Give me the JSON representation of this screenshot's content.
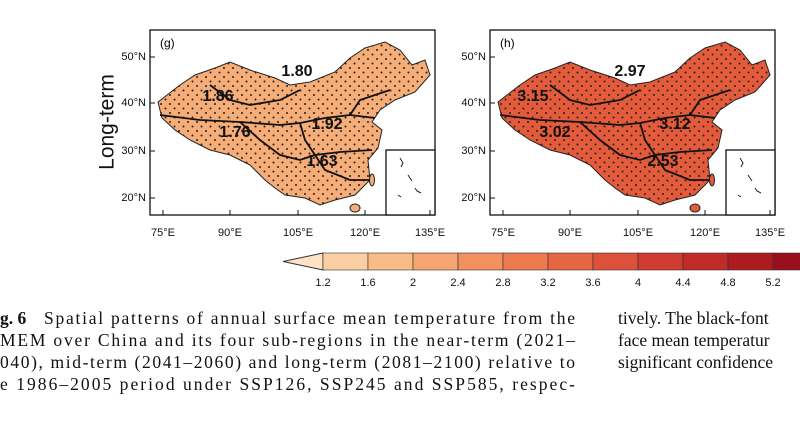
{
  "row_label": "Long-term",
  "panels": [
    {
      "label": "(g)",
      "fill": "#f6ad78",
      "values": [
        "1.80",
        "1.86",
        "1.76",
        "1.92",
        "1.63"
      ]
    },
    {
      "label": "(h)",
      "fill": "#e45b3b",
      "values": [
        "2.97",
        "3.15",
        "3.02",
        "3.12",
        "2.53"
      ]
    }
  ],
  "lat_labels": [
    "50°N",
    "40°N",
    "30°N",
    "20°N"
  ],
  "lon_labels": [
    "75°E",
    "90°E",
    "105°E",
    "120°E",
    "135°E"
  ],
  "colorbar": {
    "ticks": [
      "1.2",
      "1.6",
      "2",
      "2.4",
      "2.8",
      "3.2",
      "3.6",
      "4",
      "4.4",
      "4.8",
      "5.2"
    ],
    "colors": [
      "#fde3c3",
      "#fbcfa3",
      "#f9bb88",
      "#f6a571",
      "#f2905e",
      "#ed7b4f",
      "#e66543",
      "#dd5039",
      "#cf3b30",
      "#c02a28",
      "#ad1b21",
      "#9a0f1c"
    ]
  },
  "caption": {
    "fig_label": "g. 6",
    "left": [
      "Spatial patterns of annual surface mean temperature from the",
      "MEM over China and its four sub-regions in the near-term (2021–",
      "040), mid-term (2041–2060) and long-term (2081–2100) relative to",
      "e 1986–2005 period under SSP126, SSP245 and SSP585, respec-"
    ],
    "right": [
      "tively. The black-font",
      "face mean temperatur",
      "significant confidence"
    ]
  }
}
